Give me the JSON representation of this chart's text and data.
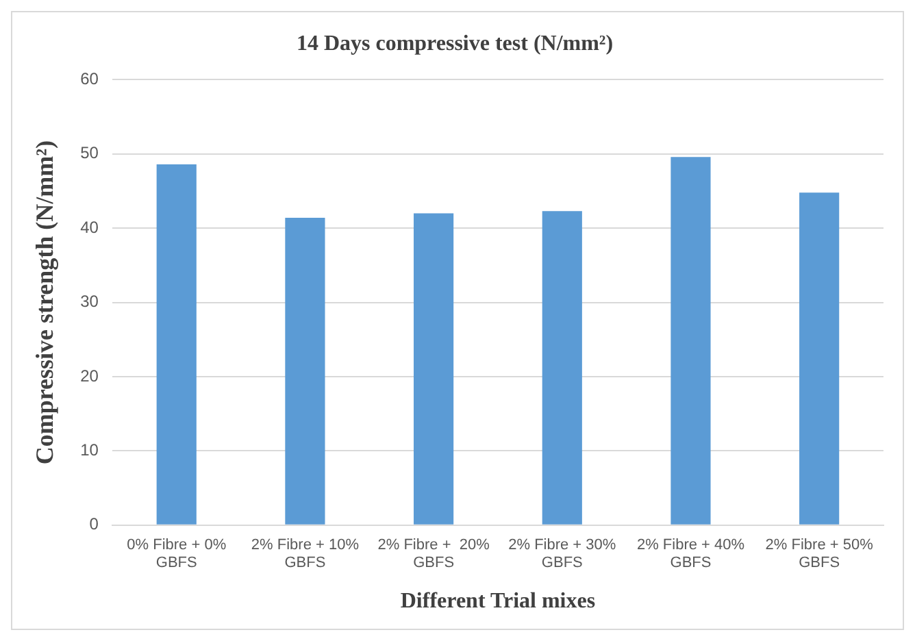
{
  "chart_data": {
    "type": "bar",
    "title": "14 Days compressive test (N/mm²)",
    "xlabel": "Different Trial mixes",
    "ylabel": "Compressive strength (N/mm²)",
    "categories": [
      "0% Fibre + 0% GBFS",
      "2% Fibre + 10% GBFS",
      "2% Fibre +  20% GBFS",
      "2% Fibre + 30% GBFS",
      "2% Fibre + 40% GBFS",
      "2% Fibre + 50% GBFS"
    ],
    "values": [
      48.6,
      41.4,
      42.0,
      42.3,
      49.6,
      44.8
    ],
    "color": "#5b9bd5",
    "ylim": [
      0,
      60
    ],
    "yticks": [
      0,
      10,
      20,
      30,
      40,
      50,
      60
    ],
    "grid": "y",
    "legend": false
  }
}
